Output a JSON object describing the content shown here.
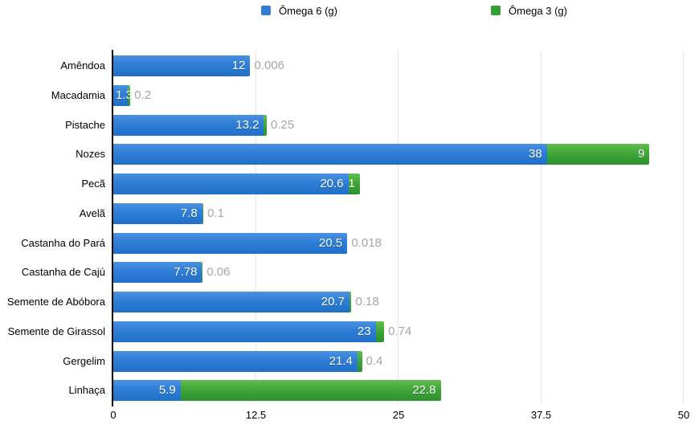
{
  "legend": {
    "items": [
      {
        "label": "Ômega 6 (g)",
        "color": "#2e7dd6"
      },
      {
        "label": "Ômega 3 (g)",
        "color": "#30a030"
      }
    ]
  },
  "chart_data": {
    "type": "bar",
    "orientation": "horizontal",
    "stacked": true,
    "title": "",
    "xlabel": "",
    "ylabel": "",
    "xlim": [
      0,
      50
    ],
    "grid": true,
    "legend_position": "top",
    "categories": [
      "Amêndoa",
      "Macadamia",
      "Pistache",
      "Nozes",
      "Pecã",
      "Avelã",
      "Castanha do Pará",
      "Castanha de Cajú",
      "Semente de Abóbora",
      "Semente de Girassol",
      "Gergelim",
      "Linhaça"
    ],
    "series": [
      {
        "name": "Ômega 6 (g)",
        "color": "#2e7dd6",
        "values": [
          12,
          1.3,
          13.2,
          38,
          20.6,
          7.8,
          20.5,
          7.78,
          20.7,
          23,
          21.4,
          5.9
        ],
        "labels": [
          "12",
          "1.3",
          "13.2",
          "38",
          "20.6",
          "7.8",
          "20.5",
          "7.78",
          "20.7",
          "23",
          "21.4",
          "5.9"
        ]
      },
      {
        "name": "Ômega 3 (g)",
        "color": "#30a030",
        "values": [
          0.006,
          0.2,
          0.25,
          9,
          1,
          0.1,
          0.018,
          0.06,
          0.18,
          0.74,
          0.4,
          22.8
        ],
        "labels": [
          "0.006",
          "0.2",
          "0.25",
          "9",
          "1",
          "0.1",
          "0.018",
          "0.06",
          "0.18",
          "0.74",
          "0.4",
          "22.8"
        ]
      }
    ],
    "xticks": {
      "values": [
        0,
        12.5,
        25,
        37.5,
        50
      ],
      "labels": [
        "0",
        "12.5",
        "25",
        "37.5",
        "50"
      ]
    }
  },
  "colors": {
    "omega6_gradient_top": "#4a91e2",
    "omega6_gradient_bottom": "#2070c9",
    "omega3_gradient_top": "#62bc4f",
    "omega3_gradient_bottom": "#2d9230",
    "inside_value_label": "#ffffff",
    "outside_value_label": "#a6a6a6",
    "gridline": "#e4e4e4",
    "axis_line": "#000000",
    "text": "#000000",
    "background": "#ffffff"
  }
}
